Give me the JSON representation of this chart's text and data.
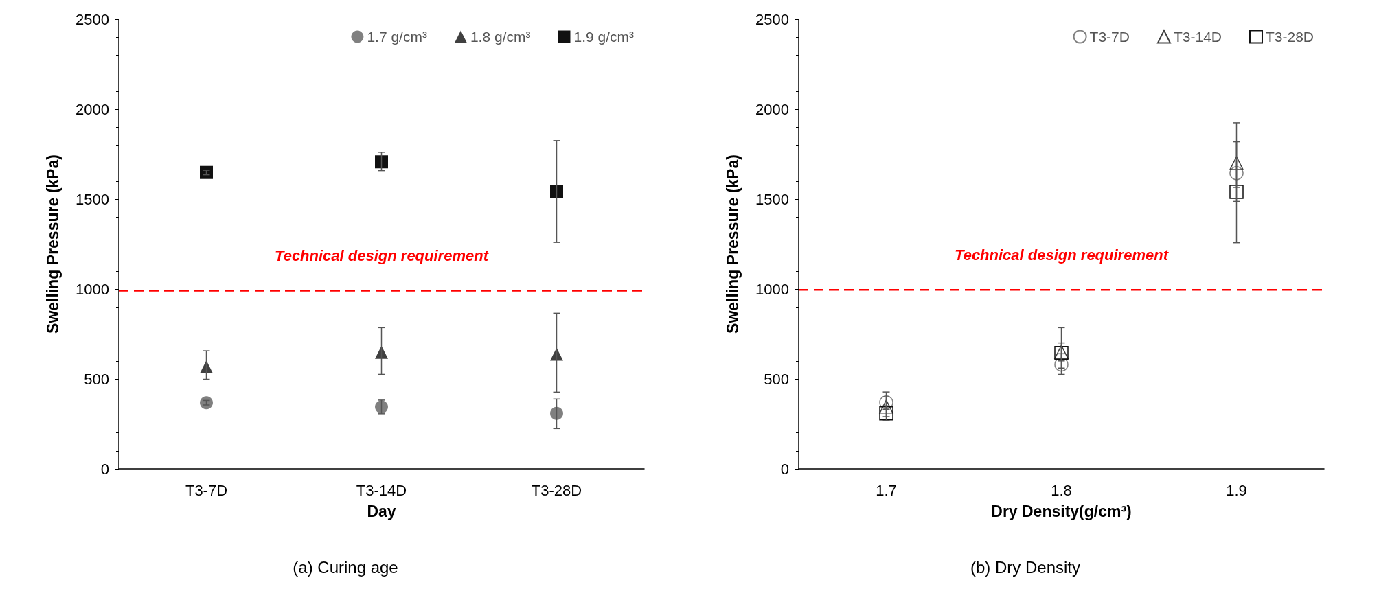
{
  "chart_data": [
    {
      "type": "scatter",
      "title": "(a) Curing age",
      "xlabel": "Day",
      "ylabel": "Swelling Pressure (kPa)",
      "categories": [
        "T3-7D",
        "T3-14D",
        "T3-28D"
      ],
      "ylim": [
        0,
        2500
      ],
      "yticks": [
        0,
        500,
        1000,
        1500,
        2000,
        2500
      ],
      "grid": false,
      "legend": "top right",
      "series": [
        {
          "name": "1.7 g/cm³",
          "color": "#808080",
          "marker": "circle",
          "values": [
            367,
            344,
            308
          ],
          "errors": [
            [
              355,
              380
            ],
            [
              306,
              382
            ],
            [
              224,
              388
            ]
          ]
        },
        {
          "name": "1.8 g/cm³",
          "color": "#404040",
          "marker": "triangle",
          "values": [
            567,
            648,
            637
          ],
          "errors": [
            [
              498,
              656
            ],
            [
              525,
              785
            ],
            [
              426,
              865
            ]
          ]
        },
        {
          "name": "1.9 g/cm³",
          "color": "#111111",
          "marker": "square",
          "values": [
            1648,
            1707,
            1542
          ],
          "errors": [
            [
              1635,
              1660
            ],
            [
              1658,
              1760
            ],
            [
              1259,
              1825
            ]
          ]
        }
      ],
      "ref_lines": [
        {
          "axis": "y",
          "value": 990,
          "label": "Technical design requirement",
          "color": "#ff0000",
          "line_style": "dashed"
        }
      ]
    },
    {
      "type": "scatter",
      "title": "(b) Dry Density",
      "xlabel": "Dry Density(g/cm³)",
      "ylabel": "Swelling Pressure (kPa)",
      "categories": [
        "1.7",
        "1.8",
        "1.9"
      ],
      "ylim": [
        0,
        2500
      ],
      "yticks": [
        0,
        500,
        1000,
        1500,
        2000,
        2500
      ],
      "grid": false,
      "legend": "top right",
      "series": [
        {
          "name": "T3-7D",
          "color": "#808080",
          "marker": "circle",
          "values": [
            369,
            580,
            1644
          ],
          "errors": [
            [
              330,
              427
            ],
            [
              525,
              640
            ],
            [
              1487,
              1819
            ]
          ]
        },
        {
          "name": "T3-14D",
          "color": "#404040",
          "marker": "triangle",
          "values": [
            346,
            650,
            1700
          ],
          "errors": [
            [
              290,
              400
            ],
            [
              560,
              785
            ],
            [
              1565,
              1924
            ]
          ]
        },
        {
          "name": "T3-28D",
          "color": "#111111",
          "marker": "square",
          "values": [
            308,
            644,
            1540
          ],
          "errors": [
            [
              268,
              350
            ],
            [
              600,
              700
            ],
            [
              1257,
              1819
            ]
          ]
        }
      ],
      "ref_lines": [
        {
          "axis": "y",
          "value": 995,
          "label": "Technical design requirement",
          "color": "#ff0000",
          "line_style": "dashed"
        }
      ]
    }
  ]
}
